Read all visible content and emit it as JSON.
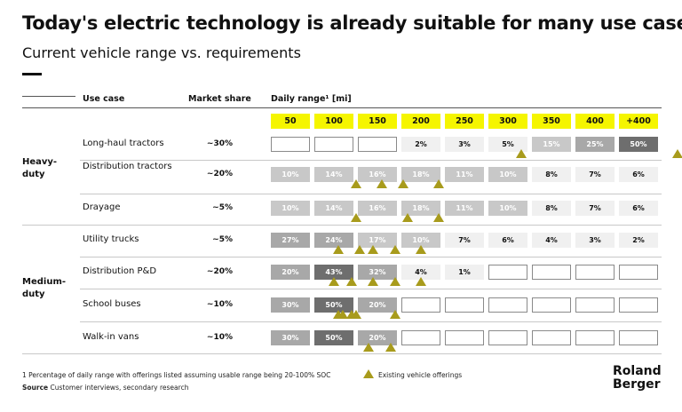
{
  "title": "Today's electric technology is already suitable for many use cases",
  "subtitle": "Current vehicle range vs. requirements",
  "headers": {
    "use_case": "Use case",
    "market_share": "Market share",
    "daily_range": "Daily range¹ [mi]"
  },
  "chart_data": {
    "type": "table",
    "title": "Today's electric technology is already suitable for many use cases",
    "subtitle": "Current vehicle range vs. requirements",
    "ranges": [
      "50",
      "100",
      "150",
      "200",
      "250",
      "300",
      "350",
      "400",
      "+400"
    ],
    "groups": [
      {
        "name": "Heavy-\nduty",
        "rows": [
          0,
          1,
          2
        ]
      },
      {
        "name": "Medium-\nduty",
        "rows": [
          3,
          4,
          5,
          6
        ]
      }
    ],
    "rows": [
      {
        "use_case": "Long-haul tractors",
        "market_share": "~30%",
        "cells": [
          [
            "",
            ""
          ],
          [
            "",
            ""
          ],
          [
            "",
            ""
          ],
          [
            "2%",
            "light"
          ],
          [
            "3%",
            "light"
          ],
          [
            "5%",
            "light"
          ],
          [
            "15%",
            "mid"
          ],
          [
            "25%",
            "midgray"
          ],
          [
            "50%",
            "dark"
          ]
        ],
        "offerings": [
          5.3,
          8.9
        ]
      },
      {
        "use_case": "Distribution tractors",
        "market_share": "~20%",
        "cells": [
          [
            "10%",
            "mid"
          ],
          [
            "14%",
            "mid"
          ],
          [
            "16%",
            "mid"
          ],
          [
            "18%",
            "mid"
          ],
          [
            "11%",
            "mid"
          ],
          [
            "10%",
            "mid"
          ],
          [
            "8%",
            "light"
          ],
          [
            "7%",
            "light"
          ],
          [
            "6%",
            "light"
          ]
        ],
        "offerings": [
          1.5,
          2.1,
          2.6,
          3.4
        ]
      },
      {
        "use_case": "Drayage",
        "market_share": "~5%",
        "cells": [
          [
            "10%",
            "mid"
          ],
          [
            "14%",
            "mid"
          ],
          [
            "16%",
            "mid"
          ],
          [
            "18%",
            "mid"
          ],
          [
            "11%",
            "mid"
          ],
          [
            "10%",
            "mid"
          ],
          [
            "8%",
            "light"
          ],
          [
            "7%",
            "light"
          ],
          [
            "6%",
            "light"
          ]
        ],
        "offerings": [
          1.5,
          2.7,
          3.4
        ]
      },
      {
        "use_case": "Utility trucks",
        "market_share": "~5%",
        "cells": [
          [
            "27%",
            "midgray"
          ],
          [
            "24%",
            "midgray"
          ],
          [
            "17%",
            "mid"
          ],
          [
            "10%",
            "mid"
          ],
          [
            "7%",
            "light"
          ],
          [
            "6%",
            "light"
          ],
          [
            "4%",
            "light"
          ],
          [
            "3%",
            "light"
          ],
          [
            "2%",
            "light"
          ]
        ],
        "offerings": [
          1.1,
          1.6,
          1.9,
          2.4,
          3.0
        ]
      },
      {
        "use_case": "Distribution P&D",
        "market_share": "~20%",
        "cells": [
          [
            "20%",
            "midgray"
          ],
          [
            "43%",
            "dark"
          ],
          [
            "32%",
            "midgray"
          ],
          [
            "4%",
            "light"
          ],
          [
            "1%",
            "light"
          ],
          [
            "",
            ""
          ],
          [
            "",
            ""
          ],
          [
            "",
            ""
          ],
          [
            "",
            ""
          ]
        ],
        "offerings": [
          1.0,
          1.4,
          1.9,
          2.4,
          3.0
        ]
      },
      {
        "use_case": "School buses",
        "market_share": "~10%",
        "cells": [
          [
            "30%",
            "midgray"
          ],
          [
            "50%",
            "dark"
          ],
          [
            "20%",
            "midgray"
          ],
          [
            "",
            ""
          ],
          [
            "",
            ""
          ],
          [
            "",
            ""
          ],
          [
            "",
            ""
          ],
          [
            "",
            ""
          ],
          [
            "",
            ""
          ]
        ],
        "offerings": [
          1.1,
          1.2,
          1.4,
          1.5,
          2.4
        ]
      },
      {
        "use_case": "Walk-in vans",
        "market_share": "~10%",
        "cells": [
          [
            "30%",
            "midgray"
          ],
          [
            "50%",
            "dark"
          ],
          [
            "20%",
            "midgray"
          ],
          [
            "",
            ""
          ],
          [
            "",
            ""
          ],
          [
            "",
            ""
          ],
          [
            "",
            ""
          ],
          [
            "",
            ""
          ],
          [
            "",
            ""
          ]
        ],
        "offerings": [
          1.8,
          2.3
        ]
      }
    ]
  },
  "footnote": "1  Percentage of daily range with offerings listed assuming usable range being 20-100% SOC",
  "source_label": "Source",
  "source_text": " Customer interviews, secondary research",
  "legend": {
    "offering_label": "Existing vehicle offerings"
  },
  "logo": {
    "line1": "Roland",
    "line2": "Berger"
  },
  "colors": {
    "header_yellow": "#f5f500",
    "offering_marker": "#a89b1c"
  }
}
